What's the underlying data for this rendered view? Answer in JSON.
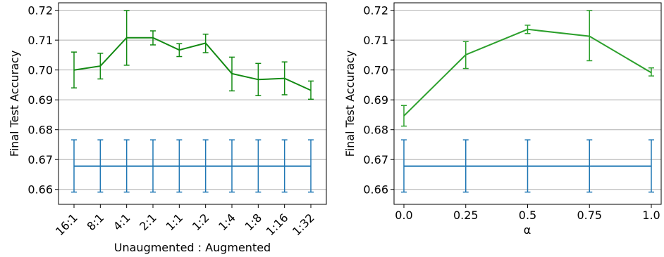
{
  "chart_data": [
    {
      "type": "line",
      "xlabel": "Unaugmented : Augmented",
      "ylabel": "Final Test Accuracy",
      "categories": [
        "16:1",
        "8:1",
        "4:1",
        "2:1",
        "1:1",
        "1:2",
        "1:4",
        "1:8",
        "1:16",
        "1:32"
      ],
      "ylim": [
        0.655,
        0.7225
      ],
      "yticks": [
        0.66,
        0.67,
        0.68,
        0.69,
        0.7,
        0.71,
        0.72
      ],
      "ytick_labels": [
        "0.66",
        "0.67",
        "0.68",
        "0.69",
        "0.70",
        "0.71",
        "0.72"
      ],
      "grid": "horizontal",
      "series": [
        {
          "color": "#138a13",
          "values": [
            0.7,
            0.7013,
            0.7108,
            0.7108,
            0.7067,
            0.709,
            0.6988,
            0.6968,
            0.6972,
            0.6932
          ],
          "lower": [
            0.694,
            0.697,
            0.7016,
            0.7084,
            0.7045,
            0.7058,
            0.693,
            0.6914,
            0.6917,
            0.6902
          ],
          "upper": [
            0.706,
            0.7056,
            0.7199,
            0.7131,
            0.7088,
            0.712,
            0.7043,
            0.7022,
            0.7027,
            0.6963
          ]
        },
        {
          "color": "#1f77b4",
          "values": [
            0.6678,
            0.6678,
            0.6678,
            0.6678,
            0.6678,
            0.6678,
            0.6678,
            0.6678,
            0.6678,
            0.6678
          ],
          "lower": [
            0.6591,
            0.6591,
            0.6591,
            0.6591,
            0.6591,
            0.6591,
            0.6591,
            0.6591,
            0.6591,
            0.6591
          ],
          "upper": [
            0.6766,
            0.6766,
            0.6766,
            0.6766,
            0.6766,
            0.6766,
            0.6766,
            0.6766,
            0.6766,
            0.6766
          ]
        }
      ]
    },
    {
      "type": "line",
      "xlabel": "α",
      "ylabel": "Final Test Accuracy",
      "categories": [
        "0.0",
        "0.25",
        "0.5",
        "0.75",
        "1.0"
      ],
      "ylim": [
        0.655,
        0.7225
      ],
      "yticks": [
        0.66,
        0.67,
        0.68,
        0.69,
        0.7,
        0.71,
        0.72
      ],
      "ytick_labels": [
        "0.66",
        "0.67",
        "0.68",
        "0.69",
        "0.70",
        "0.71",
        "0.72"
      ],
      "grid": "horizontal",
      "series": [
        {
          "color": "#2ca02c",
          "values": [
            0.6846,
            0.7051,
            0.7136,
            0.7113,
            0.6991
          ],
          "lower": [
            0.6812,
            0.7005,
            0.7122,
            0.7031,
            0.698
          ],
          "upper": [
            0.6881,
            0.7095,
            0.715,
            0.7199,
            0.7007
          ]
        },
        {
          "color": "#1f77b4",
          "values": [
            0.6678,
            0.6678,
            0.6678,
            0.6678,
            0.6678
          ],
          "lower": [
            0.6591,
            0.6591,
            0.6591,
            0.6591,
            0.6591
          ],
          "upper": [
            0.6766,
            0.6766,
            0.6766,
            0.6766,
            0.6766
          ]
        }
      ]
    }
  ]
}
